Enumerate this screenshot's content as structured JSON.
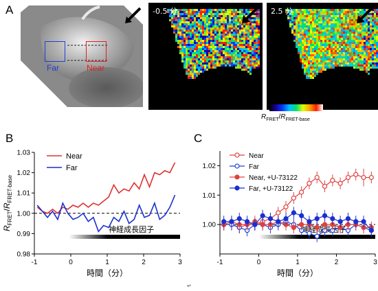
{
  "panels": {
    "a": "A",
    "b": "B",
    "c": "C"
  },
  "images": {
    "roi_far_label": "Far",
    "roi_near_label": "Near",
    "roi_far_color": "#1f3fd8",
    "roi_near_color": "#e02020",
    "time_labels": [
      "-0.5 分",
      "2.5 分"
    ],
    "colorbar": {
      "min": "0.87",
      "max": "1.12",
      "label_main": "R",
      "label_sub1": "FRET",
      "label_sep": "/",
      "label_main2": "R",
      "label_sub2": "FRET-base"
    }
  },
  "chart_data": [
    {
      "type": "line",
      "panel": "B",
      "xlabel": "時間（分）",
      "ylabel_parts": {
        "a": "R",
        "a_sub": "FRET",
        "sep": "/",
        "b": "R",
        "b_sub": "FRET-base"
      },
      "xlim": [
        -1,
        3
      ],
      "ylim": [
        0.98,
        1.03
      ],
      "xticks": [
        "-1",
        "0",
        "1",
        "2",
        "3"
      ],
      "yticks": [
        "0.98",
        "0.99",
        "1.00",
        "1.01",
        "1.02",
        "1.03"
      ],
      "baseline": 1.0,
      "stimulus": {
        "label": "神経成長因子",
        "x_start": -0.05,
        "x_end": 3.0
      },
      "legend": [
        "Near",
        "Far"
      ],
      "series": [
        {
          "name": "Near",
          "color": "#e03030",
          "x": [
            -0.92,
            -0.78,
            -0.64,
            -0.5,
            -0.36,
            -0.22,
            -0.08,
            0.06,
            0.2,
            0.34,
            0.48,
            0.62,
            0.76,
            0.9,
            1.04,
            1.18,
            1.32,
            1.46,
            1.6,
            1.74,
            1.88,
            2.02,
            2.16,
            2.3,
            2.44,
            2.58,
            2.72,
            2.86
          ],
          "values": [
            1.003,
            1.001,
            1.0,
            1.002,
            1.0,
            1.003,
            1.002,
            1.004,
            1.003,
            1.005,
            1.003,
            1.005,
            1.004,
            1.006,
            1.008,
            1.014,
            1.01,
            1.012,
            1.011,
            1.015,
            1.012,
            1.019,
            1.013,
            1.02,
            1.019,
            1.021,
            1.02,
            1.025
          ]
        },
        {
          "name": "Far",
          "color": "#1a2fd0",
          "x": [
            -0.92,
            -0.78,
            -0.64,
            -0.5,
            -0.36,
            -0.22,
            -0.08,
            0.06,
            0.2,
            0.34,
            0.48,
            0.62,
            0.76,
            0.9,
            1.04,
            1.18,
            1.32,
            1.46,
            1.6,
            1.74,
            1.88,
            2.02,
            2.16,
            2.3,
            2.44,
            2.58,
            2.72,
            2.86
          ],
          "values": [
            1.004,
            1.001,
            0.998,
            1.001,
            0.997,
            1.005,
            1.0,
            0.997,
            0.998,
            1.0,
            0.996,
            0.998,
            0.991,
            0.994,
            0.993,
            0.998,
            0.996,
            1.001,
            0.995,
            0.997,
            1.004,
            0.998,
            0.999,
            1.005,
            0.997,
            0.999,
            1.003,
            1.009
          ]
        }
      ]
    },
    {
      "type": "line",
      "panel": "C",
      "xlabel": "時間（分）",
      "xlim": [
        -1,
        3
      ],
      "ylim": [
        0.99,
        1.025
      ],
      "xticks": [
        "-1",
        "0",
        "1",
        "2",
        "3"
      ],
      "yticks": [
        "1.00",
        "1.01",
        "1.02"
      ],
      "ytick_values": [
        1.0,
        1.01,
        1.02
      ],
      "baseline": 1.0,
      "stimulus": {
        "label": "神経成長因子",
        "x_start": 0.0,
        "x_end": 3.0
      },
      "legend": [
        "Near",
        "Far",
        "Near, +U-73122",
        "Far, +U-73122"
      ],
      "series": [
        {
          "name": "Near",
          "color": "#e04040",
          "marker": "open",
          "x": [
            -0.9,
            -0.7,
            -0.5,
            -0.3,
            -0.1,
            0.1,
            0.3,
            0.5,
            0.7,
            0.9,
            1.1,
            1.3,
            1.5,
            1.7,
            1.9,
            2.1,
            2.3,
            2.5,
            2.7,
            2.9
          ],
          "values": [
            1.0,
            1.0,
            0.999,
            1.0,
            1.0,
            1.001,
            1.002,
            1.004,
            1.006,
            1.009,
            1.011,
            1.014,
            1.016,
            1.013,
            1.015,
            1.014,
            1.016,
            1.017,
            1.016,
            1.016
          ],
          "err": [
            0.002,
            0.002,
            0.002,
            0.002,
            0.002,
            0.002,
            0.002,
            0.002,
            0.002,
            0.002,
            0.002,
            0.002,
            0.002,
            0.002,
            0.002,
            0.002,
            0.002,
            0.002,
            0.003,
            0.002
          ]
        },
        {
          "name": "Far",
          "color": "#2040d0",
          "marker": "open",
          "x": [
            -0.9,
            -0.7,
            -0.5,
            -0.3,
            -0.1,
            0.1,
            0.3,
            0.5,
            0.7,
            0.9,
            1.1,
            1.3,
            1.5,
            1.7,
            1.9,
            2.1,
            2.3,
            2.5,
            2.7,
            2.9
          ],
          "values": [
            1.0,
            1.0,
            0.999,
            0.998,
            1.0,
            1.0,
            0.999,
            1.0,
            1.001,
            1.0,
            0.998,
            0.997,
            0.996,
            0.998,
            0.998,
            0.999,
            0.998,
            1.0,
            0.999,
            0.998
          ],
          "err": [
            0.002,
            0.002,
            0.002,
            0.002,
            0.002,
            0.002,
            0.002,
            0.002,
            0.002,
            0.002,
            0.002,
            0.002,
            0.002,
            0.002,
            0.002,
            0.002,
            0.002,
            0.002,
            0.002,
            0.002
          ]
        },
        {
          "name": "Near, +U-73122",
          "color": "#e04040",
          "marker": "filled",
          "x": [
            -0.9,
            -0.7,
            -0.5,
            -0.3,
            -0.1,
            0.1,
            0.3,
            0.5,
            0.7,
            0.9,
            1.1,
            1.3,
            1.5,
            1.7,
            1.9,
            2.1,
            2.3,
            2.5,
            2.7,
            2.9
          ],
          "values": [
            1.0,
            1.001,
            1.0,
            1.0,
            1.001,
            1.0,
            1.0,
            1.001,
            1.0,
            0.999,
            1.0,
            1.0,
            0.999,
            1.0,
            1.0,
            0.999,
            1.0,
            1.0,
            0.999,
            0.999
          ],
          "err": [
            0.002,
            0.002,
            0.002,
            0.002,
            0.002,
            0.002,
            0.002,
            0.002,
            0.002,
            0.002,
            0.002,
            0.002,
            0.002,
            0.002,
            0.002,
            0.002,
            0.002,
            0.002,
            0.002,
            0.002
          ]
        },
        {
          "name": "Far, +U-73122",
          "color": "#1a2fd0",
          "marker": "filled",
          "x": [
            -0.9,
            -0.7,
            -0.5,
            -0.3,
            -0.1,
            0.1,
            0.3,
            0.5,
            0.7,
            0.9,
            1.1,
            1.3,
            1.5,
            1.7,
            1.9,
            2.1,
            2.3,
            2.5,
            2.7,
            2.9
          ],
          "values": [
            1.001,
            1.001,
            1.002,
            1.001,
            1.0,
            1.003,
            1.002,
            1.001,
            1.002,
            1.004,
            1.003,
            1.001,
            1.002,
            1.003,
            1.002,
            1.001,
            1.002,
            1.001,
            1.001,
            0.998
          ],
          "err": [
            0.002,
            0.002,
            0.002,
            0.002,
            0.002,
            0.002,
            0.002,
            0.002,
            0.002,
            0.002,
            0.002,
            0.002,
            0.002,
            0.002,
            0.002,
            0.002,
            0.002,
            0.002,
            0.002,
            0.002
          ]
        }
      ]
    }
  ]
}
